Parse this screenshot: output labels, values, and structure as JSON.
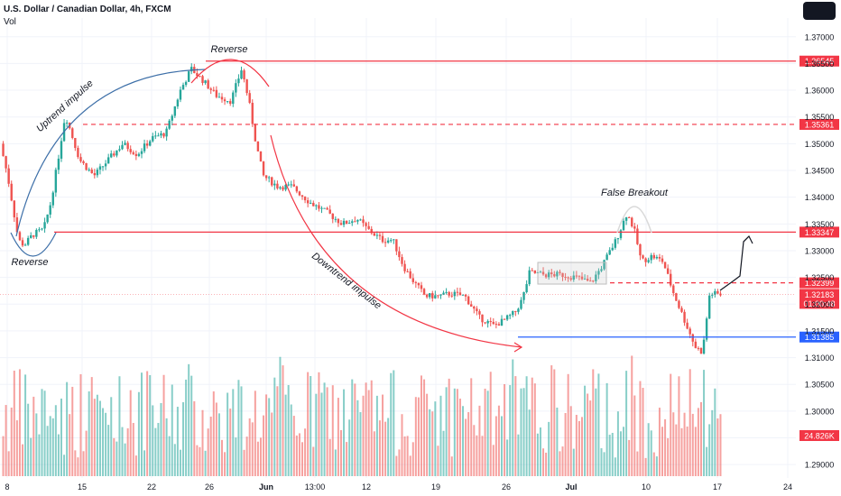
{
  "header": {
    "symbol": "U.S. Dollar / Canadian Dollar, 4h, FXCM",
    "vol_label": "Vol"
  },
  "colors": {
    "up": "#26a69a",
    "down": "#ef5350",
    "level_red": "#f23645",
    "level_blue": "#2962ff",
    "curve_blue": "#3d6fa8",
    "curve_red": "#f23645",
    "grid": "#f0f3fa",
    "text": "#131722"
  },
  "chart_data": {
    "type": "candlestick",
    "price_axis": {
      "ticks": [
        "1.37000",
        "1.36500",
        "1.36000",
        "1.35500",
        "1.35000",
        "1.34500",
        "1.34000",
        "1.33500",
        "1.33000",
        "1.32500",
        "1.32000",
        "1.31500",
        "1.31000",
        "1.30500",
        "1.30000",
        "1.29500",
        "1.29000"
      ],
      "range": [
        1.2875,
        1.3735
      ]
    },
    "time_axis": {
      "ticks": [
        {
          "label": "8",
          "bold": false
        },
        {
          "label": "15",
          "bold": false
        },
        {
          "label": "22",
          "bold": false
        },
        {
          "label": "26",
          "bold": false
        },
        {
          "label": "Jun",
          "bold": true
        },
        {
          "label": "13:00",
          "bold": false
        },
        {
          "label": "12",
          "bold": false
        },
        {
          "label": "19",
          "bold": false
        },
        {
          "label": "26",
          "bold": false
        },
        {
          "label": "Jul",
          "bold": true
        },
        {
          "label": "10",
          "bold": false
        },
        {
          "label": "17",
          "bold": false
        },
        {
          "label": "24",
          "bold": false
        }
      ]
    },
    "price_path": [
      [
        0,
        1.35
      ],
      [
        0.01,
        1.344
      ],
      [
        0.025,
        1.332
      ],
      [
        0.033,
        1.331
      ],
      [
        0.045,
        1.333
      ],
      [
        0.06,
        1.334
      ],
      [
        0.07,
        1.339
      ],
      [
        0.08,
        1.347
      ],
      [
        0.09,
        1.3555
      ],
      [
        0.11,
        1.347
      ],
      [
        0.13,
        1.344
      ],
      [
        0.15,
        1.347
      ],
      [
        0.17,
        1.35
      ],
      [
        0.19,
        1.348
      ],
      [
        0.21,
        1.351
      ],
      [
        0.23,
        1.352
      ],
      [
        0.25,
        1.36
      ],
      [
        0.265,
        1.364
      ],
      [
        0.28,
        1.362
      ],
      [
        0.3,
        1.359
      ],
      [
        0.32,
        1.358
      ],
      [
        0.335,
        1.364
      ],
      [
        0.345,
        1.358
      ],
      [
        0.355,
        1.35
      ],
      [
        0.365,
        1.344
      ],
      [
        0.385,
        1.342
      ],
      [
        0.405,
        1.342
      ],
      [
        0.43,
        1.339
      ],
      [
        0.455,
        1.337
      ],
      [
        0.475,
        1.335
      ],
      [
        0.495,
        1.336
      ],
      [
        0.51,
        1.334
      ],
      [
        0.53,
        1.332
      ],
      [
        0.545,
        1.332
      ],
      [
        0.56,
        1.327
      ],
      [
        0.575,
        1.324
      ],
      [
        0.59,
        1.3215
      ],
      [
        0.61,
        1.3215
      ],
      [
        0.625,
        1.322
      ],
      [
        0.645,
        1.3215
      ],
      [
        0.665,
        1.3175
      ],
      [
        0.685,
        1.316
      ],
      [
        0.7,
        1.317
      ],
      [
        0.715,
        1.3185
      ],
      [
        0.725,
        1.321
      ],
      [
        0.735,
        1.326
      ],
      [
        0.755,
        1.3255
      ],
      [
        0.78,
        1.3255
      ],
      [
        0.8,
        1.325
      ],
      [
        0.82,
        1.324
      ],
      [
        0.835,
        1.327
      ],
      [
        0.855,
        1.332
      ],
      [
        0.87,
        1.337
      ],
      [
        0.88,
        1.334
      ],
      [
        0.89,
        1.328
      ],
      [
        0.905,
        1.329
      ],
      [
        0.92,
        1.328
      ],
      [
        0.935,
        1.322
      ],
      [
        0.95,
        1.317
      ],
      [
        0.965,
        1.312
      ],
      [
        0.975,
        1.311
      ],
      [
        0.985,
        1.322
      ],
      [
        1.0,
        1.3218
      ]
    ],
    "levels": [
      {
        "price": 1.36545,
        "label": "1.36545",
        "style": "solid",
        "color": "#f23645"
      },
      {
        "price": 1.35361,
        "label": "1.35361",
        "style": "dashed",
        "color": "#f23645"
      },
      {
        "price": 1.33347,
        "label": "1.33347",
        "style": "solid",
        "color": "#f23645"
      },
      {
        "price": 1.32399,
        "label": "1.32399",
        "style": "dashed",
        "color": "#f23645"
      },
      {
        "price": 1.31385,
        "label": "1.31385",
        "style": "solid",
        "color": "#2962ff"
      }
    ],
    "current_price": {
      "price": 1.32183,
      "label": "1.32183",
      "countdown": "01:00:48"
    },
    "volume_label": "24.826K",
    "annotations": [
      {
        "text": "Reverse",
        "at": "bottom-left low"
      },
      {
        "text": "Uptrend impulse",
        "at": "ascending curve"
      },
      {
        "text": "Reverse",
        "at": "top"
      },
      {
        "text": "Downtrend impulse",
        "at": "descending curve"
      },
      {
        "text": "False Breakout",
        "at": "July spike"
      }
    ]
  }
}
